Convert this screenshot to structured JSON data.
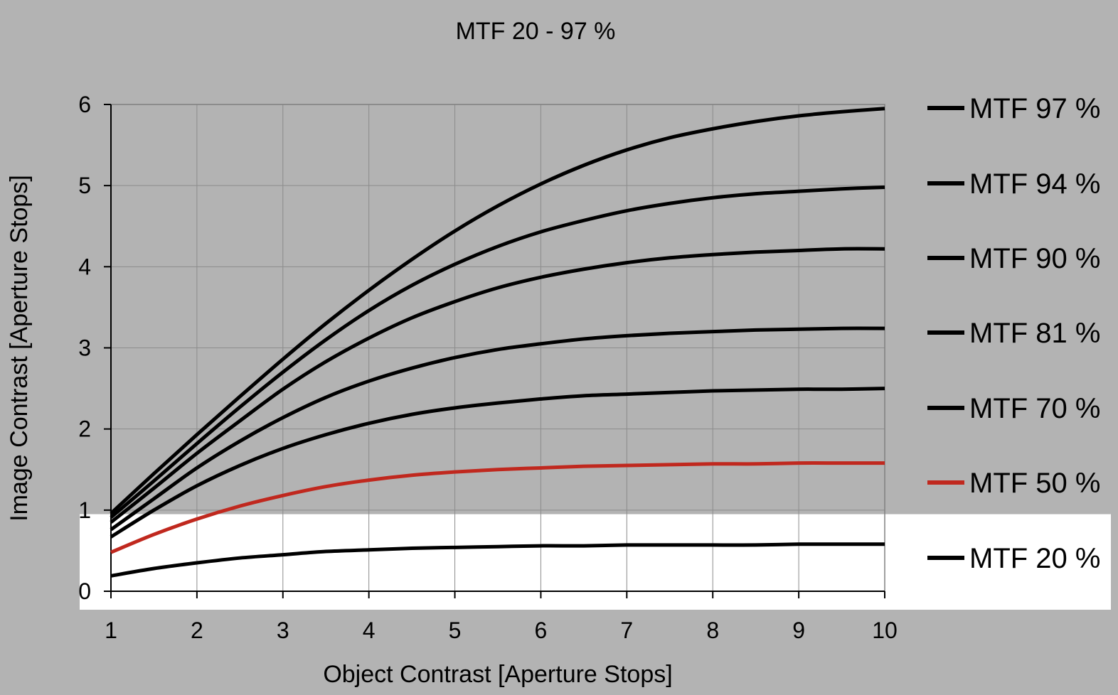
{
  "chart_data": {
    "type": "line",
    "title": "MTF 20 - 97 %",
    "xlabel": "Object Contrast [Aperture Stops]",
    "ylabel": "Image Contrast [Aperture Stops]",
    "xlim": [
      1,
      10
    ],
    "ylim": [
      0,
      6
    ],
    "x_ticks": [
      "1",
      "2",
      "3",
      "4",
      "5",
      "6",
      "7",
      "8",
      "9",
      "10"
    ],
    "y_ticks": [
      "0",
      "1",
      "2",
      "3",
      "4",
      "5",
      "6"
    ],
    "grid": true,
    "legend_position": "right",
    "highlight_band": [
      0,
      0.95
    ],
    "colors": {
      "background": "#b3b3b3",
      "band": "#ffffff",
      "series_default": "#000000",
      "series_highlight": "#c0281e"
    },
    "x": [
      1,
      1.5,
      2,
      2.5,
      3,
      3.5,
      4,
      4.5,
      5,
      5.5,
      6,
      6.5,
      7,
      7.5,
      8,
      8.5,
      9,
      9.5,
      10
    ],
    "series": [
      {
        "name": "MTF 97 %",
        "color": "#000000",
        "values": [
          0.96,
          1.45,
          1.93,
          2.4,
          2.86,
          3.3,
          3.71,
          4.09,
          4.44,
          4.75,
          5.02,
          5.25,
          5.44,
          5.59,
          5.7,
          5.79,
          5.86,
          5.91,
          5.95
        ]
      },
      {
        "name": "MTF 94 %",
        "color": "#000000",
        "values": [
          0.91,
          1.36,
          1.82,
          2.27,
          2.7,
          3.1,
          3.46,
          3.77,
          4.03,
          4.25,
          4.43,
          4.57,
          4.69,
          4.78,
          4.85,
          4.9,
          4.93,
          4.96,
          4.98
        ]
      },
      {
        "name": "MTF 90 %",
        "color": "#000000",
        "values": [
          0.85,
          1.27,
          1.7,
          2.1,
          2.49,
          2.83,
          3.12,
          3.37,
          3.57,
          3.74,
          3.87,
          3.97,
          4.05,
          4.11,
          4.15,
          4.18,
          4.2,
          4.22,
          4.22
        ]
      },
      {
        "name": "MTF 81 %",
        "color": "#000000",
        "values": [
          0.76,
          1.14,
          1.52,
          1.85,
          2.14,
          2.39,
          2.59,
          2.75,
          2.88,
          2.98,
          3.05,
          3.11,
          3.15,
          3.18,
          3.2,
          3.22,
          3.23,
          3.24,
          3.24
        ]
      },
      {
        "name": "MTF 70 %",
        "color": "#000000",
        "values": [
          0.67,
          1.0,
          1.3,
          1.55,
          1.76,
          1.93,
          2.07,
          2.18,
          2.26,
          2.32,
          2.37,
          2.41,
          2.43,
          2.45,
          2.47,
          2.48,
          2.49,
          2.49,
          2.5
        ]
      },
      {
        "name": "MTF 50 %",
        "color": "#c0281e",
        "values": [
          0.48,
          0.7,
          0.89,
          1.05,
          1.18,
          1.29,
          1.37,
          1.43,
          1.47,
          1.5,
          1.52,
          1.54,
          1.55,
          1.56,
          1.57,
          1.57,
          1.58,
          1.58,
          1.58
        ]
      },
      {
        "name": "MTF 20 %",
        "color": "#000000",
        "values": [
          0.19,
          0.28,
          0.35,
          0.41,
          0.45,
          0.49,
          0.51,
          0.53,
          0.54,
          0.55,
          0.56,
          0.56,
          0.57,
          0.57,
          0.57,
          0.57,
          0.58,
          0.58,
          0.58
        ]
      }
    ]
  }
}
